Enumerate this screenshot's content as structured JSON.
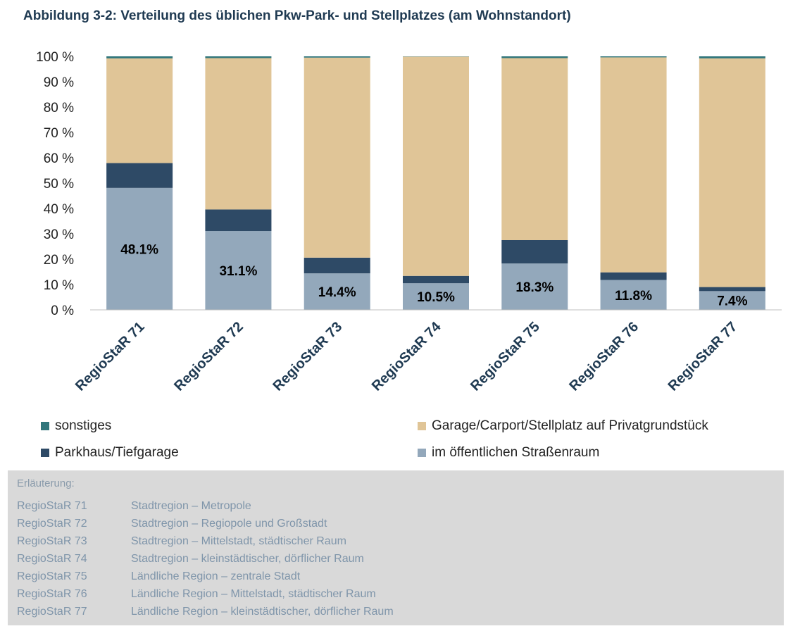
{
  "title": "Abbildung 3-2: Verteilung des üblichen Pkw-Park- und Stellplatzes (am Wohnstandort)",
  "chart_data": {
    "type": "bar",
    "stacked": true,
    "categories": [
      "RegioStaR 71",
      "RegioStaR 72",
      "RegioStaR 73",
      "RegioStaR 74",
      "RegioStaR 75",
      "RegioStaR 76",
      "RegioStaR 77"
    ],
    "series": [
      {
        "name": "im öffentlichen Straßenraum",
        "color": "#93a8bb",
        "values": [
          48.1,
          31.1,
          14.4,
          10.5,
          18.3,
          11.8,
          7.4
        ]
      },
      {
        "name": "Parkhaus/Tiefgarage",
        "color": "#2e4a66",
        "values": [
          9.8,
          8.5,
          6.2,
          2.9,
          9.2,
          3.0,
          1.6
        ]
      },
      {
        "name": "Garage/Carport/Stellplatz auf Privatgrundstück",
        "color": "#e0c597",
        "values": [
          41.3,
          59.7,
          78.9,
          86.5,
          71.8,
          84.8,
          90.2
        ]
      },
      {
        "name": "sonstiges",
        "color": "#31767b",
        "values": [
          0.8,
          0.7,
          0.5,
          0.1,
          0.7,
          0.4,
          0.8
        ]
      }
    ],
    "data_labels": [
      "48.1%",
      "31.1%",
      "14.4%",
      "10.5%",
      "18.3%",
      "11.8%",
      "7.4%"
    ],
    "y_ticks": [
      "0 %",
      "10 %",
      "20 %",
      "30 %",
      "40 %",
      "50 %",
      "60 %",
      "70 %",
      "80 %",
      "90 %",
      "100 %"
    ],
    "ylim": [
      0,
      100
    ],
    "xlabel": "",
    "ylabel": "",
    "legend_position": "bottom"
  },
  "legend": [
    {
      "label": "sonstiges",
      "color": "#31767b"
    },
    {
      "label": "Garage/Carport/Stellplatz auf Privatgrundstück",
      "color": "#e0c597"
    },
    {
      "label": "Parkhaus/Tiefgarage",
      "color": "#2e4a66"
    },
    {
      "label": "im öffentlichen Straßenraum",
      "color": "#93a8bb"
    }
  ],
  "explanation": {
    "heading": "Erläuterung:",
    "rows": [
      {
        "code": "RegioStaR 71",
        "desc": "Stadtregion – Metropole"
      },
      {
        "code": "RegioStaR 72",
        "desc": "Stadtregion – Regiopole und Großstadt"
      },
      {
        "code": "RegioStaR 73",
        "desc": "Stadtregion – Mittelstadt, städtischer Raum"
      },
      {
        "code": "RegioStaR 74",
        "desc": "Stadtregion – kleinstädtischer, dörflicher Raum"
      },
      {
        "code": "RegioStaR 75",
        "desc": "Ländliche Region – zentrale Stadt"
      },
      {
        "code": "RegioStaR 76",
        "desc": "Ländliche Region – Mittelstadt, städtischer Raum"
      },
      {
        "code": "RegioStaR 77",
        "desc": "Ländliche Region – kleinstädtischer, dörflicher Raum"
      }
    ]
  }
}
